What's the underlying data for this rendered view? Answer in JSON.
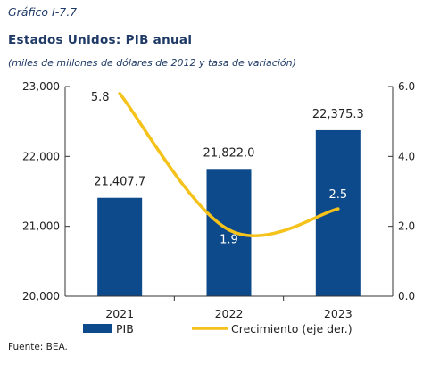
{
  "header": {
    "figure_label": "Gráfico I-7.7",
    "title": "Estados Unidos: PIB anual",
    "subtitle": "(miles de millones de dólares de 2012 y tasa de variación)"
  },
  "footer": {
    "source": "Fuente: BEA."
  },
  "colors": {
    "bar": "#0d4a8c",
    "line": "#f5c21b",
    "axis": "#333333"
  },
  "chart_data": {
    "type": "bar",
    "categories": [
      "2021",
      "2022",
      "2023"
    ],
    "series": [
      {
        "name": "PIB",
        "type": "bar",
        "axis": "left",
        "values": [
          21407.7,
          21822.0,
          22375.3
        ],
        "labels": [
          "21,407.7",
          "21,822.0",
          "22,375.3"
        ]
      },
      {
        "name": "Crecimiento (eje der.)",
        "type": "line",
        "axis": "right",
        "values": [
          5.8,
          1.9,
          2.5
        ],
        "labels": [
          "5.8",
          "1.9",
          "2.5"
        ]
      }
    ],
    "ylim_left": [
      20000,
      23000
    ],
    "yticks_left": [
      "20,000",
      "21,000",
      "22,000",
      "23,000"
    ],
    "ylim_right": [
      0,
      6
    ],
    "yticks_right": [
      "0.0",
      "2.0",
      "4.0",
      "6.0"
    ],
    "legend_position": "bottom",
    "grid": false
  }
}
